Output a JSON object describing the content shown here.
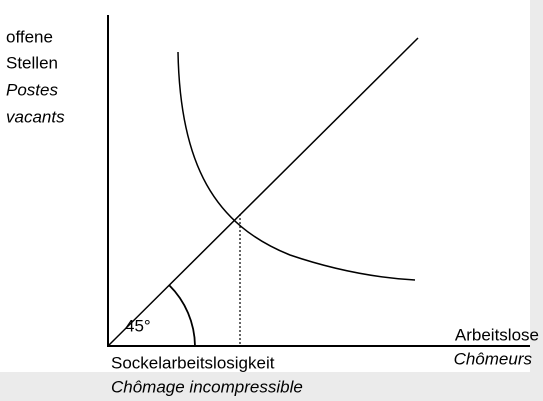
{
  "y_axis_label": [
    "offene",
    "Stellen",
    "Postes",
    "vacants"
  ],
  "x_axis_label": [
    "Arbeitslose",
    "Chômeurs"
  ],
  "baseline_label": [
    "Sockelarbeitslosigkeit",
    "Chômage incompressible"
  ],
  "angle_label": "45°"
}
